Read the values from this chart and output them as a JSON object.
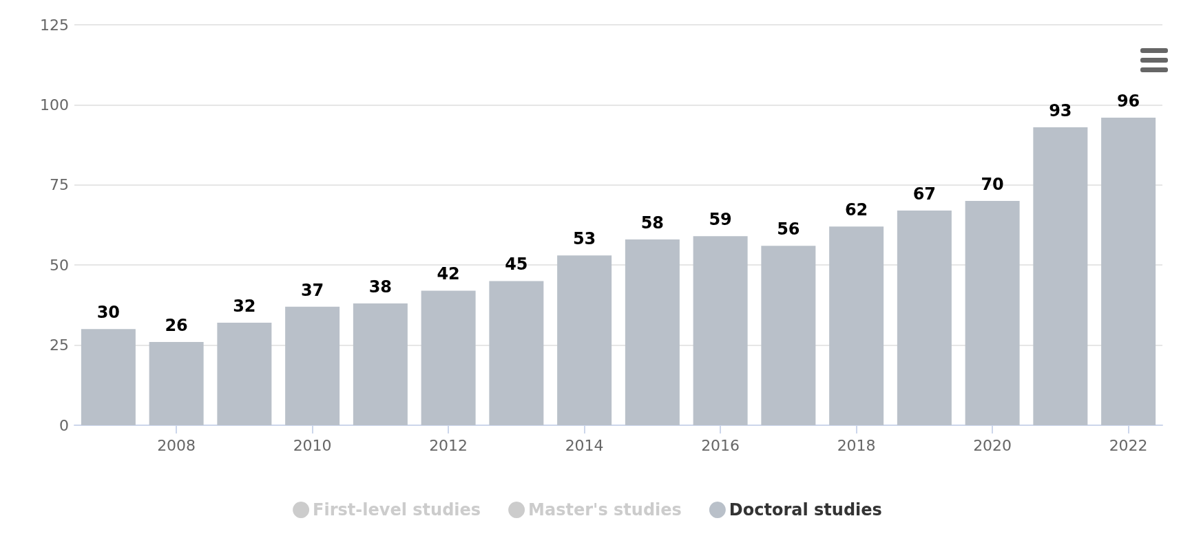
{
  "chart_data": {
    "type": "bar",
    "categories": [
      null,
      "2008",
      null,
      "2010",
      null,
      "2012",
      null,
      "2014",
      null,
      "2016",
      null,
      "2018",
      null,
      "2020",
      null,
      "2022"
    ],
    "series": [
      {
        "name": "First-level studies",
        "color": "#cccccc",
        "values": [
          null,
          null,
          null,
          null,
          null,
          null,
          null,
          null,
          null,
          null,
          null,
          null,
          null,
          null,
          null,
          null
        ]
      },
      {
        "name": "Master's studies",
        "color": "#cccccc",
        "values": [
          null,
          null,
          null,
          null,
          null,
          null,
          null,
          null,
          null,
          null,
          null,
          null,
          null,
          null,
          null,
          null
        ]
      },
      {
        "name": "Doctoral studies",
        "color": "#b9c0c9",
        "values": [
          30,
          26,
          32,
          37,
          38,
          42,
          45,
          53,
          58,
          59,
          56,
          62,
          67,
          70,
          93,
          96
        ]
      }
    ],
    "ylim": [
      0,
      125
    ],
    "yticks": [
      0,
      25,
      50,
      75,
      100,
      125
    ],
    "grid": "y",
    "legend": "bottom",
    "data_labels": true
  }
}
